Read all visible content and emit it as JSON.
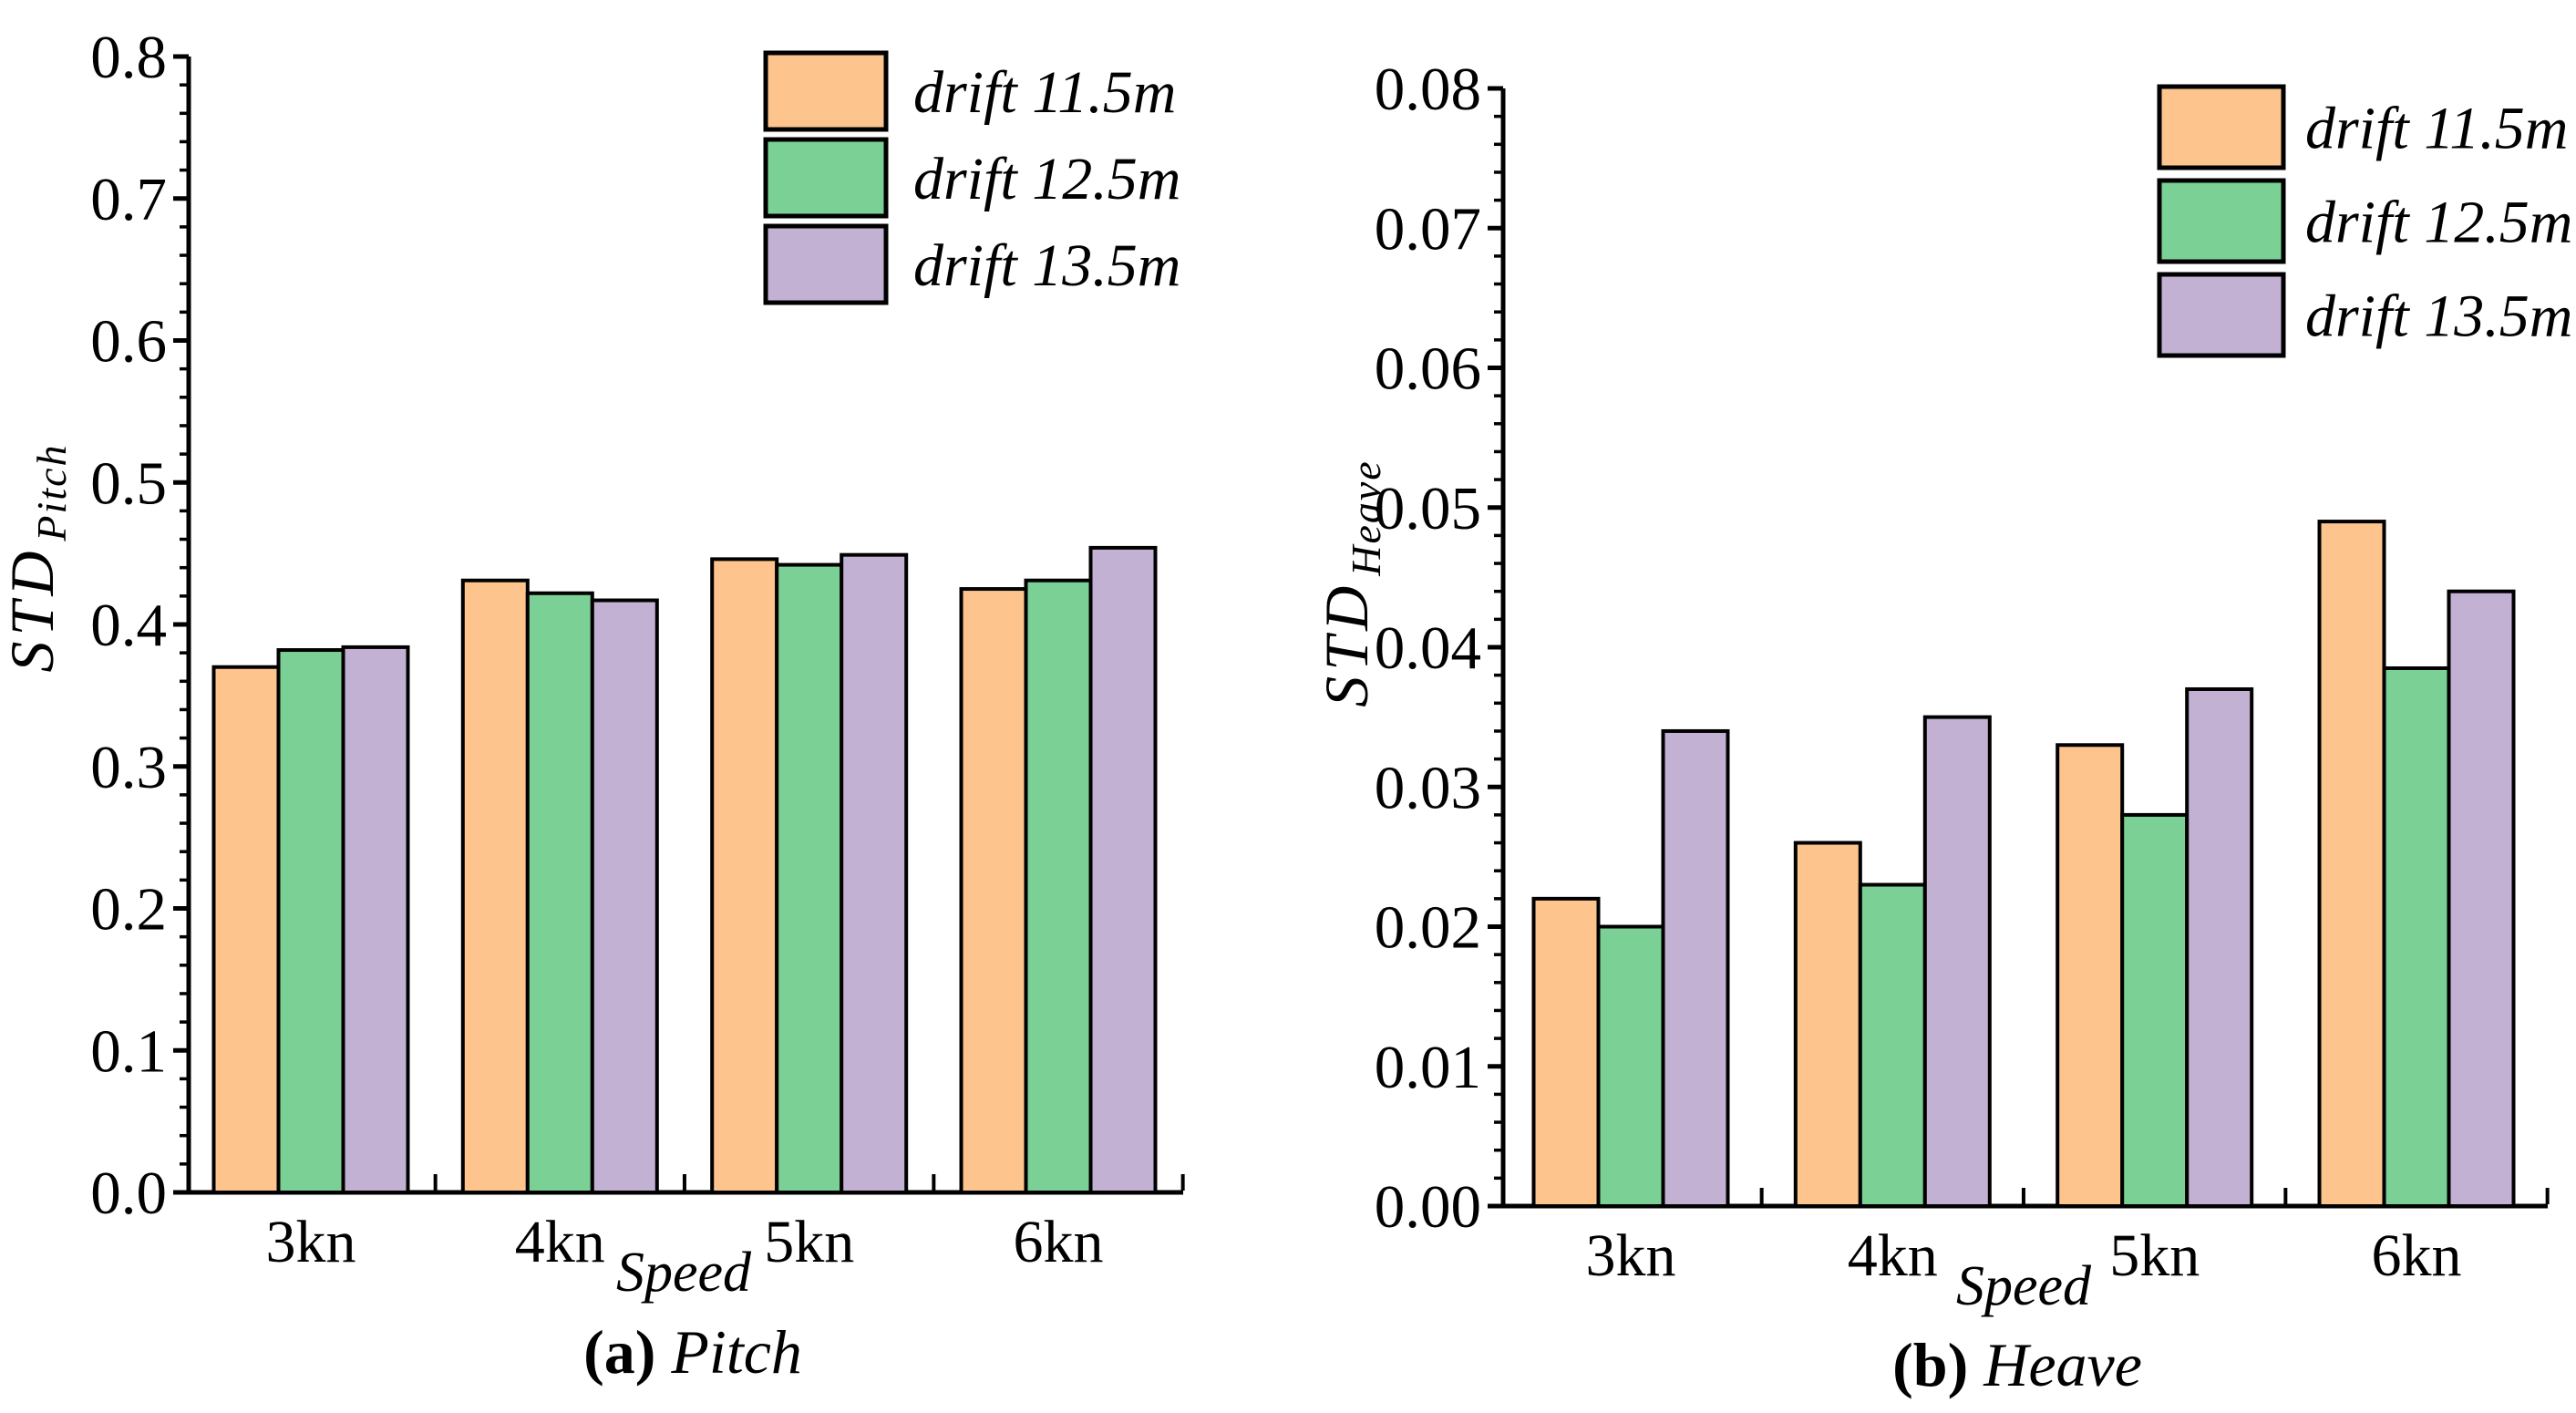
{
  "page": {
    "background": "#ffffff",
    "axis_color": "#000000"
  },
  "chart_data": [
    {
      "id": "pitch",
      "type": "bar",
      "caption": {
        "index": "(a)",
        "title": "Pitch"
      },
      "xlabel": "Speed",
      "ylabel": {
        "main": "STD",
        "sub": "Pitch"
      },
      "categories": [
        "3kn",
        "4kn",
        "5kn",
        "6kn"
      ],
      "series": [
        {
          "name": "drift 11.5m",
          "color": "#FDC48E",
          "values": [
            0.37,
            0.431,
            0.446,
            0.425
          ]
        },
        {
          "name": "drift 12.5m",
          "color": "#7BD096",
          "values": [
            0.382,
            0.422,
            0.442,
            0.431
          ]
        },
        {
          "name": "drift 13.5m",
          "color": "#C3B1D4",
          "values": [
            0.384,
            0.417,
            0.449,
            0.454
          ]
        }
      ],
      "ylim": [
        0,
        0.8
      ],
      "ytick_step": 0.1,
      "yminor_step": 0.02,
      "ytick_decimals": 1,
      "ytick_labels": [
        "0.0",
        "0.1",
        "0.2",
        "0.3",
        "0.4",
        "0.5",
        "0.6",
        "0.7",
        "0.8"
      ],
      "bar_outline": "#000000",
      "grid": false,
      "legend_position": "top-right-inside"
    },
    {
      "id": "heave",
      "type": "bar",
      "caption": {
        "index": "(b)",
        "title": "Heave"
      },
      "xlabel": "Speed",
      "ylabel": {
        "main": "STD",
        "sub": "Heave"
      },
      "categories": [
        "3kn",
        "4kn",
        "5kn",
        "6kn"
      ],
      "series": [
        {
          "name": "drift 11.5m",
          "color": "#FDC48E",
          "values": [
            0.022,
            0.026,
            0.033,
            0.049
          ]
        },
        {
          "name": "drift 12.5m",
          "color": "#7BD096",
          "values": [
            0.02,
            0.023,
            0.028,
            0.0385
          ]
        },
        {
          "name": "drift 13.5m",
          "color": "#C3B1D4",
          "values": [
            0.034,
            0.035,
            0.037,
            0.044
          ]
        }
      ],
      "ylim": [
        0,
        0.08
      ],
      "ytick_step": 0.01,
      "yminor_step": 0.002,
      "ytick_decimals": 2,
      "ytick_labels": [
        "0.00",
        "0.01",
        "0.02",
        "0.03",
        "0.04",
        "0.05",
        "0.06",
        "0.07",
        "0.08"
      ],
      "bar_outline": "#000000",
      "grid": false,
      "legend_position": "top-right-inside"
    }
  ]
}
